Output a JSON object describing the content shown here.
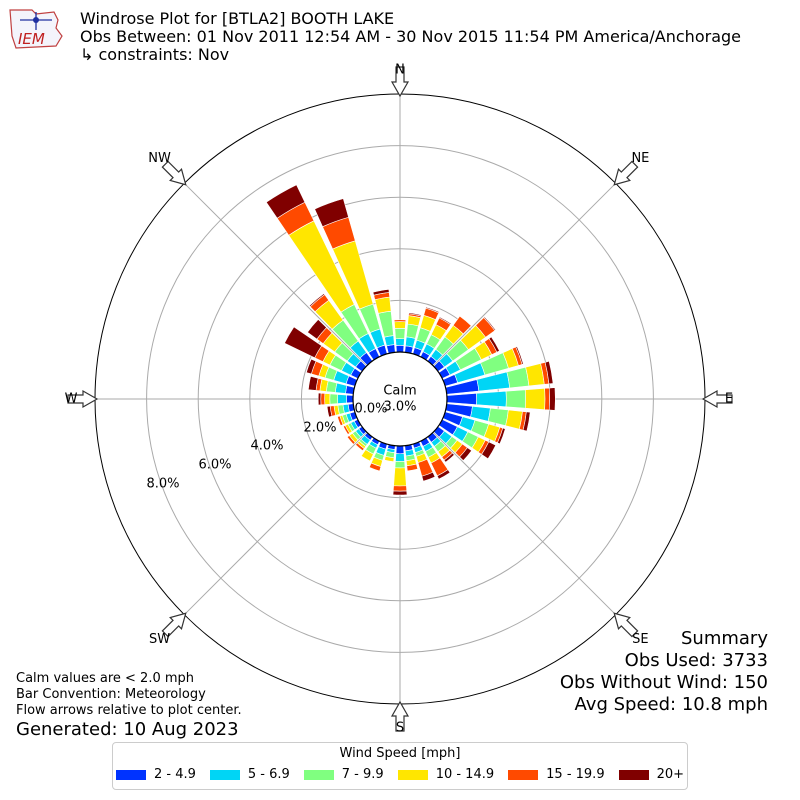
{
  "header": {
    "title": "Windrose Plot for [BTLA2] BOOTH LAKE",
    "subtitle": "Obs Between: 01 Nov 2011 12:54 AM - 30 Nov 2015 11:54 PM America/Anchorage",
    "constraints": "↳ constraints: Nov",
    "logo_text": "IEM"
  },
  "summary": {
    "heading": "Summary",
    "obs_used": "Obs Used: 3733",
    "obs_without_wind": "Obs Without Wind: 150",
    "avg_speed": "Avg Speed: 10.8 mph"
  },
  "notes": {
    "calm_note": "Calm values are < 2.0 mph",
    "bar_convention": "Bar Convention: Meteorology",
    "flow_note": "Flow arrows relative to plot center.",
    "generated": "Generated: 10 Aug 2023"
  },
  "colors": {
    "ring": "#aaaaaa",
    "outer_ring": "#000000",
    "bins": [
      "#0033ff",
      "#00d5f5",
      "#80ff80",
      "#ffe600",
      "#ff4a00",
      "#800000"
    ]
  },
  "chart_data": {
    "type": "windrose",
    "direction_labels": [
      "N",
      "NE",
      "E",
      "SE",
      "S",
      "SW",
      "W",
      "NW"
    ],
    "radial_tick_labels": [
      "0.0%",
      "2.0%",
      "4.0%",
      "6.0%",
      "8.0%"
    ],
    "radial_ticks": [
      0,
      2,
      4,
      6,
      8
    ],
    "rmax": 10,
    "calm_label": "Calm",
    "calm_value_label": "3.0%",
    "legend_title": "Wind Speed [mph]",
    "speed_bins": [
      "2 - 4.9",
      "5 - 6.9",
      "7 - 9.9",
      "10 - 14.9",
      "15 - 19.9",
      "20+"
    ],
    "sectors": [
      {
        "dir": 0,
        "values": [
          0.26,
          0.26,
          0.4,
          0.26,
          0.07,
          0.0
        ]
      },
      {
        "dir": 10,
        "values": [
          0.25,
          0.35,
          0.5,
          0.33,
          0.07,
          0.04
        ]
      },
      {
        "dir": 20,
        "values": [
          0.25,
          0.3,
          0.5,
          0.5,
          0.29,
          0.04
        ]
      },
      {
        "dir": 30,
        "values": [
          0.22,
          0.33,
          0.4,
          0.43,
          0.29,
          0.04
        ]
      },
      {
        "dir": 40,
        "values": [
          0.22,
          0.33,
          0.6,
          0.55,
          0.44,
          0.0
        ]
      },
      {
        "dir": 50,
        "values": [
          0.3,
          0.4,
          0.75,
          0.82,
          0.44,
          0.04
        ]
      },
      {
        "dir": 60,
        "values": [
          0.33,
          0.45,
          0.9,
          0.45,
          0.22,
          0.11
        ]
      },
      {
        "dir": 70,
        "values": [
          0.5,
          1.1,
          0.95,
          0.4,
          0.15,
          0.05
        ]
      },
      {
        "dir": 80,
        "values": [
          1.25,
          1.2,
          0.75,
          0.6,
          0.18,
          0.16
        ]
      },
      {
        "dir": 90,
        "values": [
          1.15,
          1.15,
          0.75,
          0.75,
          0.18,
          0.22
        ]
      },
      {
        "dir": 100,
        "values": [
          1.0,
          0.7,
          0.7,
          0.55,
          0.15,
          0.15
        ]
      },
      {
        "dir": 110,
        "values": [
          0.7,
          0.5,
          0.55,
          0.45,
          0.12,
          0.1
        ]
      },
      {
        "dir": 120,
        "values": [
          0.65,
          0.45,
          0.45,
          0.3,
          0.15,
          0.3
        ]
      },
      {
        "dir": 130,
        "values": [
          0.3,
          0.36,
          0.25,
          0.25,
          0.24,
          0.2
        ]
      },
      {
        "dir": 140,
        "values": [
          0.25,
          0.2,
          0.25,
          0.25,
          0.15,
          0.1
        ]
      },
      {
        "dir": 150,
        "values": [
          0.22,
          0.22,
          0.25,
          0.25,
          0.55,
          0.14
        ]
      },
      {
        "dir": 160,
        "values": [
          0.16,
          0.18,
          0.15,
          0.25,
          0.55,
          0.2
        ]
      },
      {
        "dir": 170,
        "values": [
          0.2,
          0.2,
          0.18,
          0.2,
          0.2,
          0.0
        ]
      },
      {
        "dir": 180,
        "values": [
          0.3,
          0.3,
          0.25,
          0.7,
          0.2,
          0.15
        ]
      },
      {
        "dir": 190,
        "values": [
          0.15,
          0.12,
          0.2,
          0.15,
          0.0,
          0.0
        ]
      },
      {
        "dir": 200,
        "values": [
          0.2,
          0.25,
          0.2,
          0.25,
          0.18,
          0.0
        ]
      },
      {
        "dir": 210,
        "values": [
          0.15,
          0.15,
          0.25,
          0.3,
          0.0,
          0.0
        ]
      },
      {
        "dir": 220,
        "values": [
          0.15,
          0.2,
          0.1,
          0.1,
          0.1,
          0.0
        ]
      },
      {
        "dir": 230,
        "values": [
          0.15,
          0.15,
          0.15,
          0.15,
          0.1,
          0.0
        ]
      },
      {
        "dir": 240,
        "values": [
          0.15,
          0.15,
          0.12,
          0.12,
          0.08,
          0.0
        ]
      },
      {
        "dir": 250,
        "values": [
          0.2,
          0.15,
          0.15,
          0.1,
          0.1,
          0.0
        ]
      },
      {
        "dir": 260,
        "values": [
          0.2,
          0.2,
          0.2,
          0.15,
          0.15,
          0.12
        ]
      },
      {
        "dir": 270,
        "values": [
          0.25,
          0.35,
          0.3,
          0.2,
          0.15,
          0.1
        ]
      },
      {
        "dir": 280,
        "values": [
          0.3,
          0.4,
          0.35,
          0.25,
          0.15,
          0.3
        ]
      },
      {
        "dir": 290,
        "values": [
          0.35,
          0.5,
          0.35,
          0.25,
          0.3,
          0.2
        ]
      },
      {
        "dir": 300,
        "values": [
          0.3,
          0.4,
          0.5,
          0.3,
          0.35,
          1.3
        ]
      },
      {
        "dir": 310,
        "values": [
          0.3,
          0.4,
          0.6,
          0.55,
          0.3,
          0.45
        ]
      },
      {
        "dir": 320,
        "values": [
          0.4,
          0.55,
          1.0,
          0.95,
          0.27,
          0.05
        ]
      },
      {
        "dir": 330,
        "values": [
          0.35,
          0.65,
          1.25,
          3.6,
          0.8,
          0.75
        ]
      },
      {
        "dir": 340,
        "values": [
          0.35,
          0.65,
          1.0,
          2.55,
          0.95,
          0.75
        ]
      },
      {
        "dir": 350,
        "values": [
          0.3,
          0.35,
          0.95,
          0.55,
          0.18,
          0.12
        ]
      }
    ]
  }
}
